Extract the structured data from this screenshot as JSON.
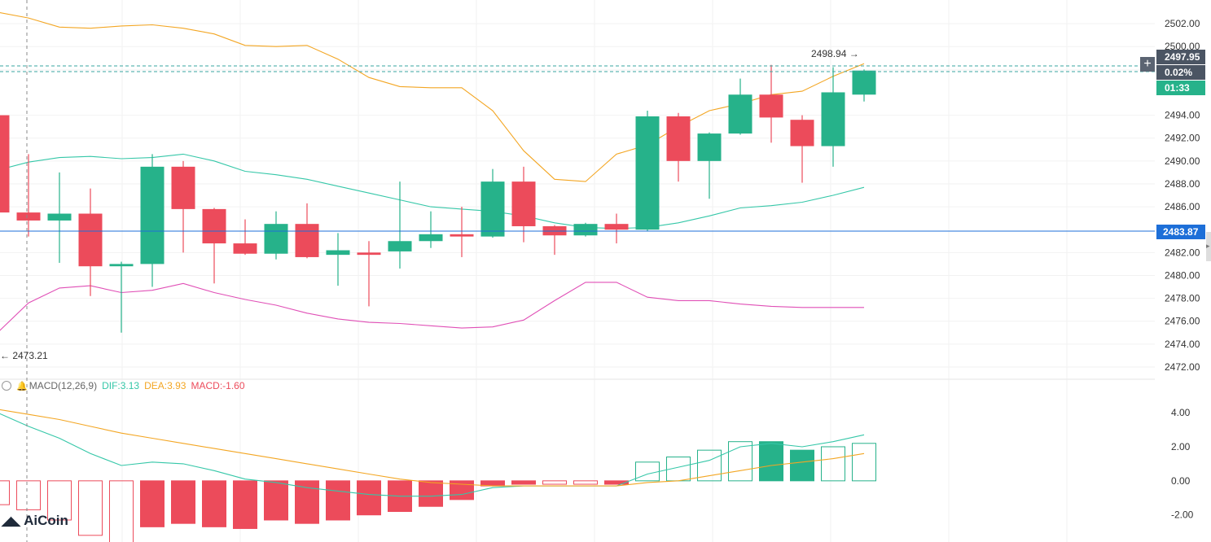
{
  "colors": {
    "up": "#26b28a",
    "down": "#ec4b5b",
    "ma": "#35c7a8",
    "upper_band": "#f3a623",
    "lower_band": "#e04fb6",
    "price_line": "#1d6fd8",
    "axis_text": "#333333",
    "grid": "#f2f2f2"
  },
  "chart_data": [
    {
      "type": "candlestick",
      "ylim": [
        2471,
        2503.5
      ],
      "y_ticks": [
        "2502.00",
        "2500.00",
        "2497.95",
        "2494.00",
        "2492.00",
        "2490.00",
        "2488.00",
        "2486.00",
        "2483.87",
        "2482.00",
        "2480.00",
        "2478.00",
        "2476.00",
        "2474.00",
        "2472.00"
      ],
      "candles": [
        {
          "o": 2494.0,
          "h": 2494.0,
          "l": 2485.3,
          "c": 2485.5
        },
        {
          "o": 2485.5,
          "h": 2490.6,
          "l": 2483.4,
          "c": 2484.8
        },
        {
          "o": 2484.8,
          "h": 2489.0,
          "l": 2481.1,
          "c": 2485.4
        },
        {
          "o": 2485.4,
          "h": 2487.6,
          "l": 2478.2,
          "c": 2480.8
        },
        {
          "o": 2480.8,
          "h": 2481.2,
          "l": 2475.0,
          "c": 2481.0
        },
        {
          "o": 2481.0,
          "h": 2490.6,
          "l": 2479.0,
          "c": 2489.5
        },
        {
          "o": 2489.5,
          "h": 2490.0,
          "l": 2482.0,
          "c": 2485.8
        },
        {
          "o": 2485.8,
          "h": 2485.9,
          "l": 2479.3,
          "c": 2482.8
        },
        {
          "o": 2482.8,
          "h": 2484.9,
          "l": 2481.8,
          "c": 2481.9
        },
        {
          "o": 2481.9,
          "h": 2485.6,
          "l": 2481.4,
          "c": 2484.5
        },
        {
          "o": 2484.5,
          "h": 2486.3,
          "l": 2481.5,
          "c": 2481.6
        },
        {
          "o": 2481.8,
          "h": 2483.7,
          "l": 2479.1,
          "c": 2482.2
        },
        {
          "o": 2482.0,
          "h": 2483.0,
          "l": 2477.3,
          "c": 2481.8
        },
        {
          "o": 2482.1,
          "h": 2488.2,
          "l": 2480.6,
          "c": 2483.0
        },
        {
          "o": 2483.0,
          "h": 2485.6,
          "l": 2482.4,
          "c": 2483.6
        },
        {
          "o": 2483.6,
          "h": 2486.0,
          "l": 2481.6,
          "c": 2483.4
        },
        {
          "o": 2483.4,
          "h": 2489.3,
          "l": 2483.3,
          "c": 2488.2
        },
        {
          "o": 2488.2,
          "h": 2489.5,
          "l": 2482.9,
          "c": 2484.3
        },
        {
          "o": 2484.3,
          "h": 2484.4,
          "l": 2481.8,
          "c": 2483.5
        },
        {
          "o": 2483.5,
          "h": 2484.6,
          "l": 2483.4,
          "c": 2484.5
        },
        {
          "o": 2484.5,
          "h": 2485.4,
          "l": 2482.8,
          "c": 2484.0
        },
        {
          "o": 2484.0,
          "h": 2494.4,
          "l": 2483.9,
          "c": 2493.9
        },
        {
          "o": 2493.9,
          "h": 2494.2,
          "l": 2488.2,
          "c": 2490.0
        },
        {
          "o": 2490.0,
          "h": 2492.5,
          "l": 2486.7,
          "c": 2492.4
        },
        {
          "o": 2492.4,
          "h": 2497.2,
          "l": 2492.3,
          "c": 2495.8
        },
        {
          "o": 2495.8,
          "h": 2498.4,
          "l": 2491.6,
          "c": 2493.8
        },
        {
          "o": 2493.6,
          "h": 2494.0,
          "l": 2488.1,
          "c": 2491.3
        },
        {
          "o": 2491.3,
          "h": 2498.2,
          "l": 2489.5,
          "c": 2496.0
        },
        {
          "o": 2495.8,
          "h": 2498.0,
          "l": 2495.2,
          "c": 2497.9
        }
      ],
      "boll_mid": [
        2489.2,
        2489.9,
        2490.3,
        2490.4,
        2490.2,
        2490.3,
        2490.6,
        2490.0,
        2489.1,
        2488.8,
        2488.4,
        2487.8,
        2487.2,
        2486.6,
        2486.0,
        2485.8,
        2485.6,
        2485.2,
        2484.6,
        2484.2,
        2484.1,
        2484.2,
        2484.6,
        2485.2,
        2485.9,
        2486.1,
        2486.4,
        2487.0,
        2487.7
      ],
      "boll_upper": [
        2503.0,
        2502.5,
        2501.7,
        2501.6,
        2501.8,
        2501.9,
        2501.6,
        2501.1,
        2500.1,
        2500.0,
        2500.1,
        2498.9,
        2497.3,
        2496.5,
        2496.4,
        2496.4,
        2494.4,
        2490.9,
        2488.4,
        2488.2,
        2490.6,
        2491.4,
        2493.0,
        2494.4,
        2495.0,
        2495.8,
        2496.1,
        2497.4,
        2498.5
      ],
      "boll_lower": [
        2475.0,
        2477.6,
        2478.9,
        2479.1,
        2478.5,
        2478.7,
        2479.3,
        2478.5,
        2477.9,
        2477.4,
        2476.7,
        2476.2,
        2475.9,
        2475.8,
        2475.6,
        2475.4,
        2475.5,
        2476.1,
        2477.8,
        2479.4,
        2479.4,
        2478.1,
        2477.8,
        2477.8,
        2477.5,
        2477.3,
        2477.2,
        2477.2,
        2477.2
      ],
      "annotations": {
        "high_label": "2498.94 →",
        "low_label": "← 2473.21"
      },
      "price_tags": {
        "current_price": "2497.95",
        "change": "0.02%",
        "countdown": "01:33",
        "line_price": "2483.87"
      }
    },
    {
      "type": "bar",
      "title": "MACD(12,26,9)",
      "ylim": [
        -3.4,
        5.2
      ],
      "y_ticks": [
        "4.00",
        "2.00",
        "0.00",
        "-2.00"
      ],
      "histogram": [
        -1.4,
        -1.7,
        -2.3,
        -3.2,
        -3.7,
        -2.7,
        -2.5,
        -2.7,
        -2.8,
        -2.3,
        -2.5,
        -2.3,
        -2.0,
        -1.8,
        -1.5,
        -1.1,
        -0.3,
        -0.2,
        -0.2,
        -0.2,
        -0.2,
        1.1,
        1.4,
        1.8,
        2.3,
        2.3,
        1.8,
        2.0,
        2.2
      ],
      "dif": [
        4.0,
        3.2,
        2.5,
        1.6,
        0.9,
        1.1,
        1.0,
        0.6,
        0.1,
        -0.1,
        -0.4,
        -0.6,
        -0.8,
        -0.9,
        -0.9,
        -0.8,
        -0.4,
        -0.3,
        -0.3,
        -0.3,
        -0.3,
        0.4,
        0.8,
        1.2,
        2.0,
        2.2,
        2.0,
        2.3,
        2.7
      ],
      "dea": [
        4.2,
        3.9,
        3.6,
        3.2,
        2.8,
        2.5,
        2.2,
        1.9,
        1.6,
        1.3,
        1.0,
        0.7,
        0.4,
        0.1,
        -0.1,
        -0.2,
        -0.3,
        -0.3,
        -0.3,
        -0.3,
        -0.3,
        -0.1,
        0.0,
        0.3,
        0.6,
        0.9,
        1.1,
        1.3,
        1.6
      ]
    }
  ],
  "macd_legend": {
    "indicator": "MACD(12,26,9)",
    "dif": "DIF:3.13",
    "dea": "DEA:3.93",
    "macd": "MACD:-1.60"
  },
  "brand": {
    "name": "AiCoin"
  },
  "toolbar": {
    "plus_label": "+"
  }
}
